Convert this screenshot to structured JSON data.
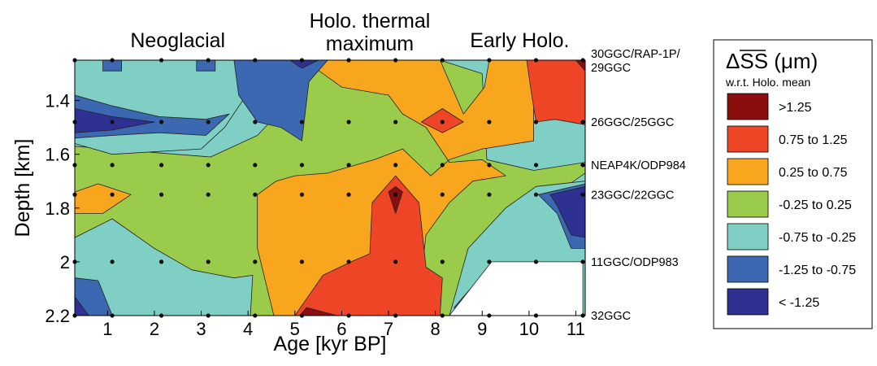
{
  "chart_data": {
    "type": "heatmap",
    "title": "",
    "xlabel": "Age [kyr BP]",
    "ylabel": "Depth [km]",
    "xlim": [
      0.3,
      11.2
    ],
    "ylim": [
      2.2,
      1.25
    ],
    "x_ticks": [
      1,
      2,
      3,
      4,
      5,
      6,
      7,
      8,
      9,
      10,
      11
    ],
    "y_ticks": [
      1.4,
      1.6,
      1.8,
      2,
      2.2
    ],
    "grid": false,
    "legend_position": "right",
    "legend_title": "ΔSS (μm)",
    "legend_subtitle": "w.r.t. Holo. mean",
    "legend": [
      {
        "label": ">1.25",
        "color": "#8b0e0e"
      },
      {
        "label": "0.75 to 1.25",
        "color": "#ee4527"
      },
      {
        "label": "0.25 to 0.75",
        "color": "#f9a61f"
      },
      {
        "label": "-0.25 to 0.25",
        "color": "#9bcb4b"
      },
      {
        "label": "-0.75 to -0.25",
        "color": "#7fcfc4"
      },
      {
        "label": "-1.25 to -0.75",
        "color": "#3c68b1"
      },
      {
        "label": "< -1.25",
        "color": "#2e3192"
      }
    ],
    "period_labels": [
      {
        "text": "Neoglacial",
        "x": 2.5
      },
      {
        "text": "Holo. thermal",
        "x": 6.6
      },
      {
        "text": "maximum",
        "x": 6.6
      },
      {
        "text": "Early Holo.",
        "x": 9.8
      }
    ],
    "core_labels": [
      {
        "lines": [
          "30GGC/RAP-1P/",
          "29GGC"
        ],
        "depth": 1.25
      },
      {
        "lines": [
          "26GGC/25GGC"
        ],
        "depth": 1.48
      },
      {
        "lines": [
          "NEAP4K/ODP984"
        ],
        "depth": 1.64
      },
      {
        "lines": [
          "23GGC/22GGC"
        ],
        "depth": 1.75
      },
      {
        "lines": [
          "11GGC/ODP983"
        ],
        "depth": 2.0
      },
      {
        "lines": [
          "32GGC"
        ],
        "depth": 2.2
      }
    ],
    "sample_ages": [
      0.3,
      1.1,
      2.15,
      3.15,
      4.15,
      5.15,
      6.15,
      7.15,
      8.15,
      9.15,
      10.15,
      11.15
    ],
    "sample_depths": [
      1.25,
      1.48,
      1.64,
      1.75,
      2.0,
      2.2
    ],
    "no_data": [
      [
        9.2,
        2.0
      ],
      [
        11.15,
        2.0
      ],
      [
        11.15,
        2.2
      ],
      [
        8.3,
        2.2
      ]
    ],
    "regions": [
      {
        "cls": 4,
        "pts": [
          [
            0.3,
            1.25
          ],
          [
            11.2,
            1.25
          ],
          [
            11.2,
            2.2
          ],
          [
            0.3,
            2.2
          ]
        ]
      },
      {
        "cls": 3,
        "pts": [
          [
            0.3,
            1.57
          ],
          [
            3.2,
            1.61
          ],
          [
            4.2,
            1.53
          ],
          [
            4.9,
            1.4
          ],
          [
            5.0,
            1.25
          ],
          [
            8.1,
            1.25
          ],
          [
            9.0,
            1.3
          ],
          [
            9.1,
            1.62
          ],
          [
            10.1,
            1.66
          ],
          [
            11.2,
            1.63
          ],
          [
            11.2,
            1.67
          ],
          [
            10.3,
            1.78
          ],
          [
            9.9,
            2.0
          ],
          [
            9.2,
            2.0
          ],
          [
            8.3,
            2.2
          ],
          [
            7.7,
            2.2
          ],
          [
            7.5,
            2.15
          ],
          [
            6.5,
            2.2
          ],
          [
            4.4,
            2.2
          ],
          [
            3.9,
            2.2
          ],
          [
            3.6,
            2.2
          ],
          [
            3.3,
            2.2
          ],
          [
            2.6,
            2.03
          ],
          [
            1.1,
            1.95
          ],
          [
            0.6,
            2.0
          ],
          [
            0.3,
            2.04
          ]
        ]
      },
      {
        "cls": 3,
        "pts": [
          [
            0.3,
            2.12
          ],
          [
            0.6,
            2.04
          ],
          [
            1.1,
            1.98
          ],
          [
            1.6,
            2.02
          ],
          [
            1.8,
            2.2
          ],
          [
            0.3,
            2.2
          ]
        ]
      },
      {
        "cls": 2,
        "pts": [
          [
            5.2,
            1.25
          ],
          [
            8.1,
            1.25
          ],
          [
            8.6,
            1.45
          ],
          [
            9.05,
            1.35
          ],
          [
            9.15,
            1.25
          ],
          [
            10.5,
            1.25
          ],
          [
            10.1,
            1.38
          ],
          [
            10.1,
            1.55
          ],
          [
            9.0,
            1.58
          ],
          [
            8.3,
            1.62
          ],
          [
            7.9,
            1.68
          ],
          [
            7.3,
            1.58
          ],
          [
            6.7,
            1.62
          ],
          [
            5.7,
            1.67
          ],
          [
            5.0,
            1.68
          ],
          [
            4.6,
            1.7
          ],
          [
            4.2,
            1.75
          ],
          [
            4.2,
            1.95
          ],
          [
            4.55,
            2.2
          ],
          [
            7.6,
            2.2
          ],
          [
            7.8,
            1.9
          ],
          [
            8.3,
            1.78
          ],
          [
            8.8,
            1.7
          ],
          [
            9.5,
            1.68
          ],
          [
            9.0,
            1.62
          ],
          [
            8.3,
            1.63
          ],
          [
            7.8,
            1.5
          ],
          [
            7.3,
            1.45
          ],
          [
            7.0,
            1.38
          ],
          [
            6.0,
            1.35
          ]
        ]
      },
      {
        "cls": 2,
        "pts": [
          [
            0.3,
            1.74
          ],
          [
            0.8,
            1.71
          ],
          [
            1.5,
            1.75
          ],
          [
            0.9,
            1.82
          ],
          [
            0.3,
            1.82
          ]
        ]
      },
      {
        "cls": 2,
        "pts": [
          [
            3.0,
            2.2
          ],
          [
            3.15,
            2.1
          ],
          [
            3.35,
            2.2
          ]
        ]
      },
      {
        "cls": 1,
        "pts": [
          [
            5.0,
            2.2
          ],
          [
            5.6,
            2.05
          ],
          [
            6.2,
            2.0
          ],
          [
            6.6,
            1.97
          ],
          [
            6.65,
            1.78
          ],
          [
            7.15,
            1.68
          ],
          [
            7.65,
            1.78
          ],
          [
            7.8,
            2.02
          ],
          [
            8.15,
            2.06
          ],
          [
            8.1,
            2.2
          ]
        ]
      },
      {
        "cls": 1,
        "pts": [
          [
            7.7,
            1.48
          ],
          [
            8.15,
            1.43
          ],
          [
            8.6,
            1.48
          ],
          [
            8.15,
            1.52
          ]
        ]
      },
      {
        "cls": 1,
        "pts": [
          [
            9.95,
            1.25
          ],
          [
            11.2,
            1.25
          ],
          [
            11.2,
            1.49
          ],
          [
            10.55,
            1.47
          ],
          [
            10.15,
            1.48
          ],
          [
            10.05,
            1.37
          ]
        ]
      },
      {
        "cls": 0,
        "pts": [
          [
            7.0,
            1.74
          ],
          [
            7.15,
            1.72
          ],
          [
            7.3,
            1.74
          ],
          [
            7.15,
            1.82
          ]
        ]
      },
      {
        "cls": 0,
        "pts": [
          [
            5.1,
            2.2
          ],
          [
            5.25,
            2.17
          ],
          [
            5.9,
            2.2
          ]
        ]
      },
      {
        "cls": 0,
        "pts": [
          [
            11.0,
            1.25
          ],
          [
            11.2,
            1.25
          ],
          [
            11.2,
            1.29
          ]
        ]
      },
      {
        "cls": 4,
        "pts": [
          [
            0.3,
            1.25
          ],
          [
            4.6,
            1.25
          ],
          [
            4.0,
            1.37
          ],
          [
            3.5,
            1.5
          ],
          [
            3.0,
            1.58
          ],
          [
            1.1,
            1.6
          ],
          [
            0.3,
            1.56
          ]
        ]
      },
      {
        "cls": 4,
        "pts": [
          [
            8.7,
            1.95
          ],
          [
            9.5,
            1.8
          ],
          [
            10.15,
            1.72
          ],
          [
            11.2,
            1.7
          ],
          [
            11.2,
            2.2
          ],
          [
            8.3,
            2.2
          ]
        ]
      },
      {
        "cls": 4,
        "pts": [
          [
            0.3,
            1.91
          ],
          [
            1.1,
            1.84
          ],
          [
            2.0,
            1.95
          ],
          [
            2.8,
            2.03
          ],
          [
            3.7,
            2.06
          ],
          [
            4.1,
            2.05
          ],
          [
            4.05,
            2.2
          ],
          [
            0.3,
            2.2
          ]
        ]
      },
      {
        "cls": 5,
        "pts": [
          [
            0.9,
            1.25
          ],
          [
            1.3,
            1.25
          ],
          [
            1.3,
            1.29
          ],
          [
            0.9,
            1.29
          ]
        ]
      },
      {
        "cls": 5,
        "pts": [
          [
            2.9,
            1.25
          ],
          [
            3.3,
            1.25
          ],
          [
            3.3,
            1.29
          ],
          [
            2.9,
            1.29
          ]
        ]
      },
      {
        "cls": 5,
        "pts": [
          [
            0.3,
            1.38
          ],
          [
            1.1,
            1.42
          ],
          [
            2.1,
            1.46
          ],
          [
            3.1,
            1.47
          ],
          [
            3.6,
            1.45
          ],
          [
            3.1,
            1.53
          ],
          [
            2.1,
            1.52
          ],
          [
            1.1,
            1.53
          ],
          [
            0.3,
            1.54
          ]
        ]
      },
      {
        "cls": 5,
        "pts": [
          [
            3.7,
            1.25
          ],
          [
            5.7,
            1.25
          ],
          [
            5.3,
            1.33
          ],
          [
            5.15,
            1.55
          ],
          [
            4.7,
            1.5
          ],
          [
            4.2,
            1.48
          ],
          [
            3.8,
            1.38
          ]
        ]
      },
      {
        "cls": 5,
        "pts": [
          [
            0.3,
            2.06
          ],
          [
            0.8,
            2.07
          ],
          [
            1.1,
            2.2
          ],
          [
            0.3,
            2.2
          ]
        ]
      },
      {
        "cls": 5,
        "pts": [
          [
            8.4,
            2.17
          ],
          [
            9.0,
            2.05
          ],
          [
            9.2,
            2.0
          ],
          [
            8.5,
            2.2
          ]
        ]
      },
      {
        "cls": 5,
        "pts": [
          [
            10.2,
            1.75
          ],
          [
            10.7,
            1.73
          ],
          [
            11.2,
            1.71
          ],
          [
            11.2,
            1.95
          ],
          [
            10.9,
            1.95
          ],
          [
            10.6,
            1.82
          ]
        ]
      },
      {
        "cls": 6,
        "pts": [
          [
            0.3,
            1.43
          ],
          [
            1.1,
            1.46
          ],
          [
            2.0,
            1.48
          ],
          [
            1.1,
            1.51
          ],
          [
            0.3,
            1.52
          ]
        ]
      },
      {
        "cls": 6,
        "pts": [
          [
            4.9,
            1.25
          ],
          [
            5.5,
            1.25
          ],
          [
            5.15,
            1.28
          ]
        ]
      },
      {
        "cls": 6,
        "pts": [
          [
            10.45,
            1.75
          ],
          [
            11.2,
            1.72
          ],
          [
            11.2,
            1.91
          ],
          [
            10.9,
            1.9
          ],
          [
            10.6,
            1.79
          ]
        ]
      },
      {
        "cls": 6,
        "pts": [
          [
            0.3,
            2.13
          ],
          [
            0.6,
            2.2
          ],
          [
            0.3,
            2.2
          ]
        ]
      }
    ]
  }
}
